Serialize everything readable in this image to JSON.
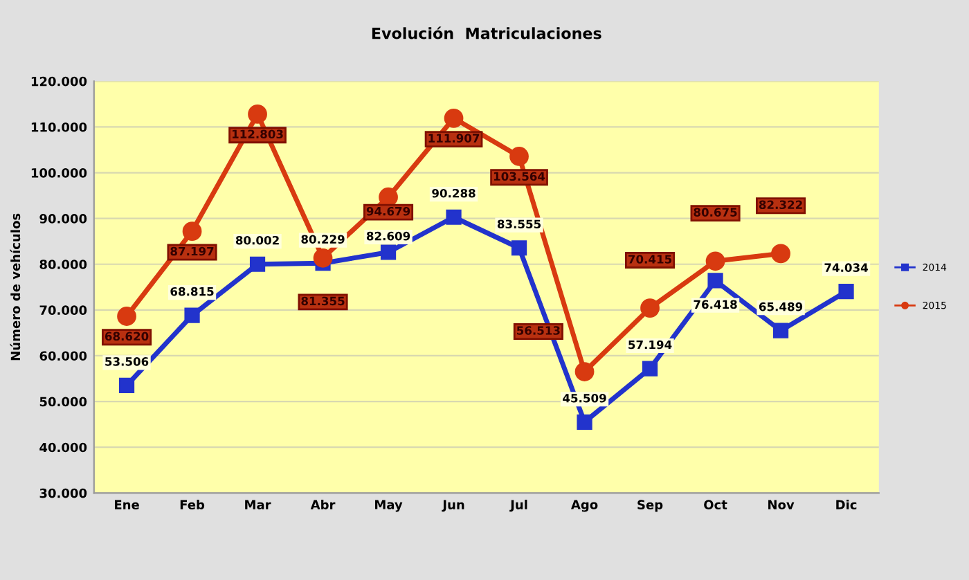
{
  "chart_data": {
    "type": "line",
    "title": "Evolución  Matriculaciones",
    "ylabel": "Número de vehículos",
    "categories": [
      "Ene",
      "Feb",
      "Mar",
      "Abr",
      "May",
      "Jun",
      "Jul",
      "Ago",
      "Sep",
      "Oct",
      "Nov",
      "Dic"
    ],
    "series": [
      {
        "name": "2014",
        "color": "#2233cc",
        "marker": "square",
        "values": [
          53506,
          68815,
          80002,
          80229,
          82609,
          90288,
          83555,
          45509,
          57194,
          76418,
          65489,
          74034
        ],
        "value_labels": [
          "53.506",
          "68.815",
          "80.002",
          "80.229",
          "82.609",
          "90.288",
          "83.555",
          "45.509",
          "57.194",
          "76.418",
          "65.489",
          "74.034"
        ]
      },
      {
        "name": "2015",
        "color": "#d83a10",
        "marker": "circle",
        "values": [
          68620,
          87197,
          112803,
          81355,
          94679,
          111907,
          103564,
          56513,
          70415,
          80675,
          82322,
          null
        ],
        "value_labels": [
          "68.620",
          "87.197",
          "112.803",
          "81.355",
          "94.679",
          "111.907",
          "103.564",
          "56.513",
          "70.415",
          "80.675",
          "82.322",
          null
        ]
      }
    ],
    "ylim": [
      30000,
      120000
    ],
    "yticks": [
      {
        "value": 30000,
        "label": "30.000"
      },
      {
        "value": 40000,
        "label": "40.000"
      },
      {
        "value": 50000,
        "label": "50.000"
      },
      {
        "value": 60000,
        "label": "60.000"
      },
      {
        "value": 70000,
        "label": "70.000"
      },
      {
        "value": 80000,
        "label": "80.000"
      },
      {
        "value": 90000,
        "label": "90.000"
      },
      {
        "value": 100000,
        "label": "100.000"
      },
      {
        "value": 110000,
        "label": "110.000"
      },
      {
        "value": 120000,
        "label": "120.000"
      }
    ],
    "grid": "y",
    "legend": "right"
  }
}
